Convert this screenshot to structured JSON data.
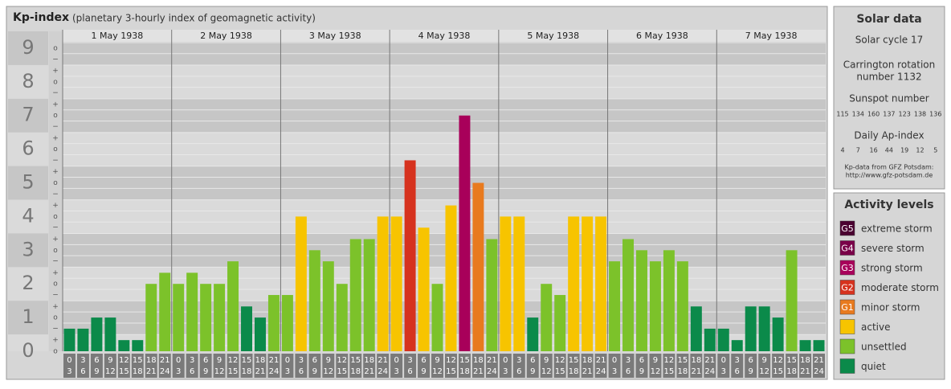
{
  "chart_data": {
    "type": "bar",
    "title": "Kp-index",
    "subtitle": "(planetary 3-hourly index of geomagnetic activity)",
    "days": [
      "1 May 1938",
      "2 May 1938",
      "3 May 1938",
      "4 May 1938",
      "5 May 1938",
      "6 May 1938",
      "7 May 1938"
    ],
    "intervals": [
      {
        "from": "0",
        "to": "3"
      },
      {
        "from": "3",
        "to": "6"
      },
      {
        "from": "6",
        "to": "9"
      },
      {
        "from": "9",
        "to": "12"
      },
      {
        "from": "12",
        "to": "15"
      },
      {
        "from": "15",
        "to": "18"
      },
      {
        "from": "18",
        "to": "21"
      },
      {
        "from": "21",
        "to": "24"
      }
    ],
    "values": [
      0.67,
      0.67,
      1,
      1,
      0.33,
      0.33,
      2,
      2.33,
      2,
      2.33,
      2,
      2,
      2.67,
      1.33,
      1,
      1.67,
      1.67,
      4,
      3,
      2.67,
      2,
      3.33,
      3.33,
      4,
      4,
      5.67,
      3.67,
      2,
      4.33,
      7,
      5,
      3.33,
      4,
      4,
      1,
      2,
      1.67,
      4,
      4,
      4,
      2.67,
      3.33,
      3,
      2.67,
      3,
      2.67,
      1.33,
      0.67,
      0.67,
      0.33,
      1.33,
      1.33,
      1,
      3,
      0.33,
      0.33
    ],
    "colors": [
      "#0b8a4a",
      "#0b8a4a",
      "#0b8a4a",
      "#0b8a4a",
      "#0b8a4a",
      "#0b8a4a",
      "#7cc22a",
      "#7cc22a",
      "#7cc22a",
      "#7cc22a",
      "#7cc22a",
      "#7cc22a",
      "#7cc22a",
      "#0b8a4a",
      "#0b8a4a",
      "#7cc22a",
      "#7cc22a",
      "#f7c400",
      "#7cc22a",
      "#7cc22a",
      "#7cc22a",
      "#7cc22a",
      "#7cc22a",
      "#f7c400",
      "#f7c400",
      "#d6321e",
      "#f7c400",
      "#7cc22a",
      "#f7c400",
      "#a8005a",
      "#e87a1e",
      "#7cc22a",
      "#f7c400",
      "#f7c400",
      "#0b8a4a",
      "#7cc22a",
      "#7cc22a",
      "#f7c400",
      "#f7c400",
      "#f7c400",
      "#7cc22a",
      "#7cc22a",
      "#7cc22a",
      "#7cc22a",
      "#7cc22a",
      "#7cc22a",
      "#0b8a4a",
      "#0b8a4a",
      "#0b8a4a",
      "#0b8a4a",
      "#0b8a4a",
      "#0b8a4a",
      "#0b8a4a",
      "#7cc22a",
      "#0b8a4a",
      "#0b8a4a"
    ],
    "ylim": [
      0,
      9.5
    ],
    "yticks": [
      0,
      1,
      2,
      3,
      4,
      5,
      6,
      7,
      8,
      9
    ],
    "minor_yticks": [
      {
        "value": 0,
        "label": "o"
      },
      {
        "value": 0.33,
        "label": "+"
      },
      {
        "value": 0.67,
        "label": "−"
      },
      {
        "value": 1,
        "label": "o"
      },
      {
        "value": 1.33,
        "label": "+"
      },
      {
        "value": 1.67,
        "label": "−"
      },
      {
        "value": 2,
        "label": "o"
      },
      {
        "value": 2.33,
        "label": "+"
      },
      {
        "value": 2.67,
        "label": "−"
      },
      {
        "value": 3,
        "label": "o"
      },
      {
        "value": 3.33,
        "label": "+"
      },
      {
        "value": 3.67,
        "label": "−"
      },
      {
        "value": 4,
        "label": "o"
      },
      {
        "value": 4.33,
        "label": "+"
      },
      {
        "value": 4.67,
        "label": "−"
      },
      {
        "value": 5,
        "label": "o"
      },
      {
        "value": 5.33,
        "label": "+"
      },
      {
        "value": 5.67,
        "label": "−"
      },
      {
        "value": 6,
        "label": "o"
      },
      {
        "value": 6.33,
        "label": "+"
      },
      {
        "value": 6.67,
        "label": "−"
      },
      {
        "value": 7,
        "label": "o"
      },
      {
        "value": 7.33,
        "label": "+"
      },
      {
        "value": 7.67,
        "label": "−"
      },
      {
        "value": 8,
        "label": "o"
      },
      {
        "value": 8.33,
        "label": "+"
      },
      {
        "value": 8.67,
        "label": "−"
      },
      {
        "value": 9,
        "label": "o"
      }
    ],
    "grid": true
  },
  "solar": {
    "title": "Solar data",
    "cycle": "Solar cycle 17",
    "rotation": [
      "Carrington rotation",
      "number 1132"
    ],
    "sunspot_title": "Sunspot number",
    "sunspots": [
      "115",
      "134",
      "160",
      "137",
      "123",
      "138",
      "136"
    ],
    "ap_title": "Daily Ap-index",
    "ap": [
      "4",
      "7",
      "16",
      "44",
      "19",
      "12",
      "5"
    ],
    "source": [
      "Kp-data from GFZ Potsdam:",
      "http://www.gfz-potsdam.de"
    ]
  },
  "legend": {
    "title": "Activity levels",
    "items": [
      {
        "code": "G5",
        "label": "extreme storm",
        "color": "#4a0030"
      },
      {
        "code": "G4",
        "label": "severe storm",
        "color": "#7a0048"
      },
      {
        "code": "G3",
        "label": "strong storm",
        "color": "#a8005a"
      },
      {
        "code": "G2",
        "label": "moderate storm",
        "color": "#d6321e"
      },
      {
        "code": "G1",
        "label": "minor storm",
        "color": "#e87a1e"
      },
      {
        "code": "",
        "label": "active",
        "color": "#f7c400"
      },
      {
        "code": "",
        "label": "unsettled",
        "color": "#7cc22a"
      },
      {
        "code": "",
        "label": "quiet",
        "color": "#0b8a4a"
      }
    ]
  }
}
